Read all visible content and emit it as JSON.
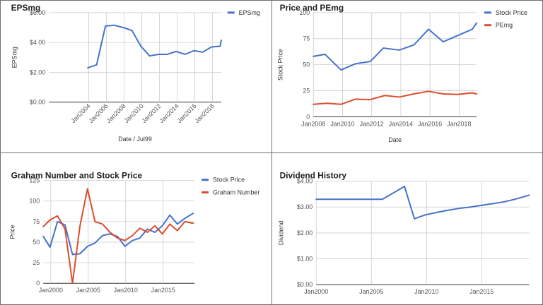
{
  "chart_data": [
    {
      "id": "p1",
      "type": "line",
      "title": "EPSmg",
      "xlabel": "Date / Jul99",
      "ylabel": "EPSmg",
      "ylim": [
        0,
        6
      ],
      "xlim": [
        1999.5,
        2019.0
      ],
      "yticks": [
        0,
        2,
        4,
        6
      ],
      "ytick_labels": [
        "$0.00",
        "$2.00",
        "$4.00",
        "$6.00"
      ],
      "xticks": [
        2004,
        2006,
        2008,
        2010,
        2012,
        2014,
        2016,
        2018
      ],
      "xtick_labels": [
        "Jan2004",
        "Jan2006",
        "Jan2008",
        "Jan2010",
        "Jan2012",
        "Jan2014",
        "Jan2016",
        "Jan2018"
      ],
      "xtick_rotate": true,
      "grid": true,
      "legend_position": "top-right",
      "series": [
        {
          "name": "EPSmg",
          "color": "#4472ca",
          "x": [
            2003.9,
            2004.9,
            2005.9,
            2006.9,
            2007.9,
            2008.9,
            2009.9,
            2010.9,
            2011.9,
            2012.9,
            2013.9,
            2014.9,
            2015.9,
            2016.9,
            2017.9,
            2018.9,
            2019.0
          ],
          "y": [
            2.3,
            2.5,
            5.1,
            5.15,
            5.0,
            4.8,
            3.75,
            3.1,
            3.2,
            3.2,
            3.4,
            3.2,
            3.45,
            3.35,
            3.7,
            3.75,
            4.15
          ]
        }
      ]
    },
    {
      "id": "p2",
      "type": "line",
      "title": "Price and PEmg",
      "xlabel": "Date",
      "ylabel": "Stock Price",
      "ylim": [
        0,
        100
      ],
      "xlim": [
        2008.0,
        2019.2
      ],
      "yticks": [
        0,
        25,
        50,
        75,
        100
      ],
      "ytick_labels": [
        "0",
        "25",
        "50",
        "75",
        "100"
      ],
      "xticks": [
        2008,
        2010,
        2012,
        2014,
        2016,
        2018
      ],
      "xtick_labels": [
        "Jan2008",
        "Jan2010",
        "Jan2012",
        "Jan2014",
        "Jan2016",
        "Jan2018"
      ],
      "xtick_rotate": false,
      "grid": true,
      "legend_position": "top-right",
      "series": [
        {
          "name": "Stock Price",
          "color": "#4472ca",
          "x": [
            2008.0,
            2008.8,
            2009.9,
            2010.9,
            2011.9,
            2012.8,
            2013.9,
            2014.9,
            2015.9,
            2016.9,
            2017.9,
            2018.9,
            2019.2
          ],
          "y": [
            58,
            60,
            45,
            51,
            53,
            66,
            64,
            69,
            84,
            72,
            78,
            84,
            90
          ]
        },
        {
          "name": "PEmg",
          "color": "#db4c2c",
          "x": [
            2008.0,
            2008.9,
            2009.9,
            2010.9,
            2011.9,
            2012.9,
            2013.9,
            2014.9,
            2015.9,
            2016.9,
            2017.9,
            2018.9,
            2019.2
          ],
          "y": [
            12,
            13,
            12,
            17,
            16.5,
            20.5,
            19,
            22,
            24.5,
            22,
            21.5,
            23,
            22
          ]
        }
      ]
    },
    {
      "id": "p3",
      "type": "line",
      "title": "Graham Number and Stock Price",
      "xlabel": "",
      "ylabel": "Price",
      "ylim": [
        0,
        125
      ],
      "xlim": [
        1999.0,
        2019.2
      ],
      "yticks": [
        0,
        25,
        50,
        75,
        100,
        125
      ],
      "ytick_labels": [
        "0",
        "25",
        "50",
        "75",
        "100",
        "125"
      ],
      "xticks": [
        2000,
        2005,
        2010,
        2015
      ],
      "xtick_labels": [
        "Jan2000",
        "Jan2005",
        "Jan2010",
        "Jan2015"
      ],
      "xtick_rotate": false,
      "grid": true,
      "legend_position": "top-right",
      "series": [
        {
          "name": "Stock Price",
          "color": "#4472ca",
          "x": [
            1999.0,
            1999.9,
            2000.9,
            2001.9,
            2002.9,
            2003.9,
            2004.9,
            2005.9,
            2006.9,
            2007.9,
            2008.9,
            2009.9,
            2010.9,
            2011.9,
            2012.9,
            2013.9,
            2014.9,
            2015.9,
            2016.9,
            2017.9,
            2019.0
          ],
          "y": [
            57,
            44,
            75,
            71,
            35,
            36,
            45,
            49,
            58,
            60,
            57,
            45,
            52,
            55,
            66,
            62,
            70,
            83,
            72,
            79,
            85
          ]
        },
        {
          "name": "Graham Number",
          "color": "#db4c2c",
          "x": [
            1999.0,
            1999.9,
            2000.9,
            2001.9,
            2002.9,
            2003.9,
            2004.9,
            2005.9,
            2006.9,
            2007.9,
            2008.9,
            2009.9,
            2010.9,
            2011.9,
            2012.9,
            2013.9,
            2014.9,
            2015.9,
            2016.9,
            2017.9,
            2019.0
          ],
          "y": [
            69,
            77,
            82,
            66,
            0,
            70,
            115,
            75,
            72,
            62,
            55,
            52,
            58,
            67,
            62,
            70,
            60,
            72,
            64,
            75,
            73
          ]
        }
      ]
    },
    {
      "id": "p4",
      "type": "line",
      "title": "Dividend History",
      "xlabel": "",
      "ylabel": "Dividend",
      "ylim": [
        0,
        4
      ],
      "xlim": [
        2000.0,
        2019.3
      ],
      "yticks": [
        0,
        1,
        2,
        3,
        4
      ],
      "ytick_labels": [
        "$0.00",
        "$1.00",
        "$2.00",
        "$3.00",
        "$4.00"
      ],
      "xticks": [
        2000,
        2005,
        2010,
        2015
      ],
      "xtick_labels": [
        "Jan2000",
        "Jan2005",
        "Jan2010",
        "Jan2015"
      ],
      "xtick_rotate": false,
      "grid": true,
      "legend_position": "none",
      "series": [
        {
          "name": "",
          "color": "#4472ca",
          "x": [
            2000.0,
            2001.0,
            2002.0,
            2003.0,
            2004.0,
            2005.0,
            2006.0,
            2007.0,
            2008.0,
            2008.9,
            2009.9,
            2011.0,
            2012.0,
            2013.0,
            2014.0,
            2015.0,
            2016.0,
            2017.0,
            2018.0,
            2019.3
          ],
          "y": [
            3.3,
            3.3,
            3.3,
            3.3,
            3.3,
            3.3,
            3.3,
            3.55,
            3.8,
            2.55,
            2.7,
            2.8,
            2.88,
            2.95,
            3.0,
            3.07,
            3.13,
            3.2,
            3.3,
            3.46
          ]
        }
      ]
    }
  ]
}
